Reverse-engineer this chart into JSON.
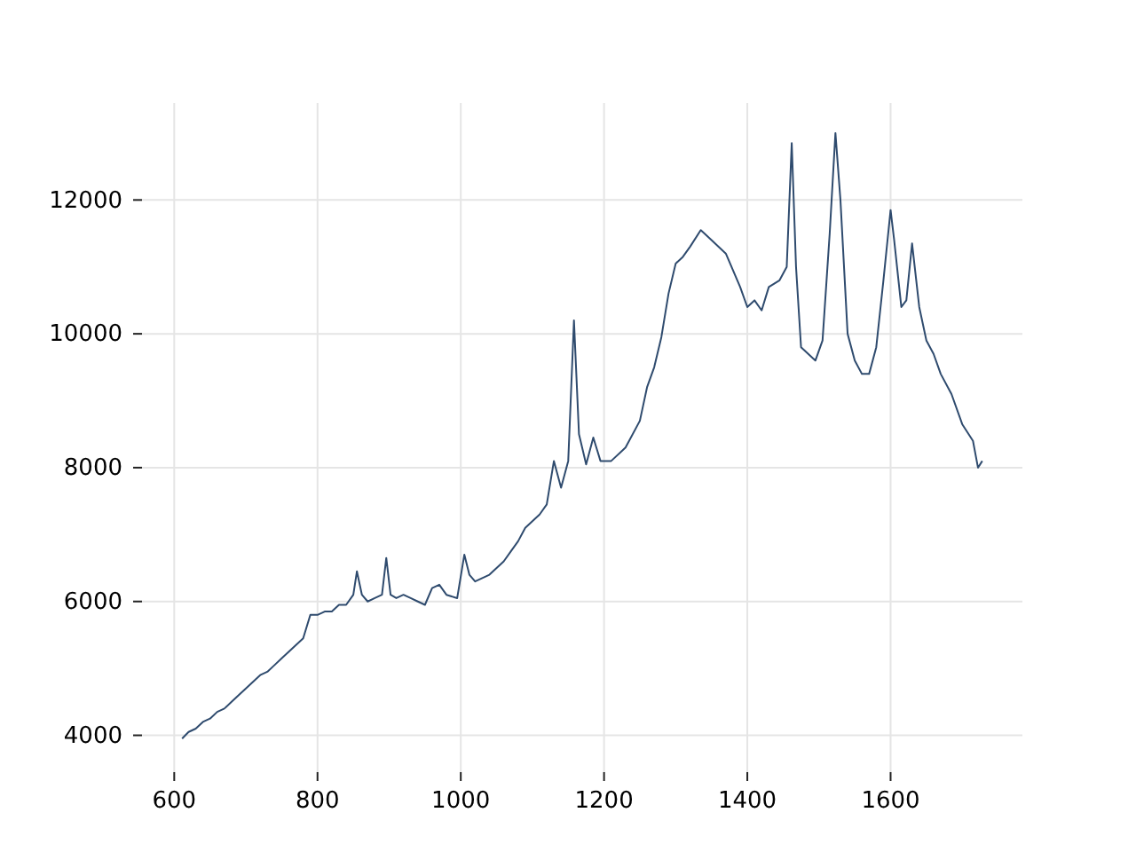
{
  "chart_data": {
    "type": "line",
    "x": [
      611,
      620,
      630,
      640,
      650,
      660,
      670,
      680,
      690,
      700,
      710,
      720,
      730,
      740,
      750,
      760,
      770,
      780,
      790,
      800,
      810,
      820,
      830,
      840,
      850,
      855,
      862,
      870,
      880,
      890,
      896,
      902,
      910,
      920,
      930,
      940,
      950,
      960,
      970,
      980,
      995,
      1005,
      1012,
      1020,
      1030,
      1040,
      1050,
      1060,
      1070,
      1080,
      1090,
      1100,
      1110,
      1120,
      1130,
      1140,
      1150,
      1158,
      1165,
      1175,
      1185,
      1195,
      1210,
      1230,
      1250,
      1260,
      1270,
      1280,
      1290,
      1300,
      1310,
      1320,
      1335,
      1350,
      1370,
      1390,
      1400,
      1410,
      1420,
      1430,
      1445,
      1455,
      1462,
      1468,
      1475,
      1485,
      1495,
      1505,
      1515,
      1523,
      1530,
      1540,
      1550,
      1560,
      1570,
      1580,
      1590,
      1600,
      1605,
      1615,
      1622,
      1630,
      1640,
      1650,
      1660,
      1670,
      1685,
      1700,
      1715,
      1722,
      1728
    ],
    "series": [
      {
        "color": "#2f4b6e",
        "values": [
          3950,
          4050,
          4100,
          4200,
          4250,
          4350,
          4400,
          4500,
          4600,
          4700,
          4800,
          4900,
          4950,
          5050,
          5150,
          5250,
          5350,
          5450,
          5800,
          5800,
          5850,
          5850,
          5950,
          5950,
          6100,
          6450,
          6100,
          6000,
          6050,
          6100,
          6650,
          6100,
          6050,
          6100,
          6050,
          6000,
          5950,
          6200,
          6250,
          6100,
          6050,
          6700,
          6400,
          6300,
          6350,
          6400,
          6500,
          6600,
          6750,
          6900,
          7100,
          7200,
          7300,
          7450,
          8100,
          7700,
          8100,
          10200,
          8500,
          8050,
          8450,
          8100,
          8100,
          8300,
          8700,
          9200,
          9500,
          9950,
          10600,
          11050,
          11150,
          11300,
          11550,
          11400,
          11200,
          10700,
          10400,
          10500,
          10350,
          10700,
          10800,
          11000,
          12850,
          11000,
          9800,
          9700,
          9600,
          9900,
          11500,
          13000,
          12000,
          10000,
          9600,
          9400,
          9400,
          9800,
          10800,
          11850,
          11400,
          10400,
          10500,
          11350,
          10400,
          9900,
          9700,
          9400,
          9100,
          8650,
          8400,
          8000,
          8100
        ]
      }
    ],
    "xlim": [
      555,
      1784
    ],
    "xticks": [
      600,
      800,
      1000,
      1200,
      1400,
      1600
    ],
    "ylim": [
      3450,
      13450
    ],
    "yticks": [
      4000,
      6000,
      8000,
      10000,
      12000
    ],
    "grid": true,
    "line_style": "solid",
    "marker": "none"
  }
}
